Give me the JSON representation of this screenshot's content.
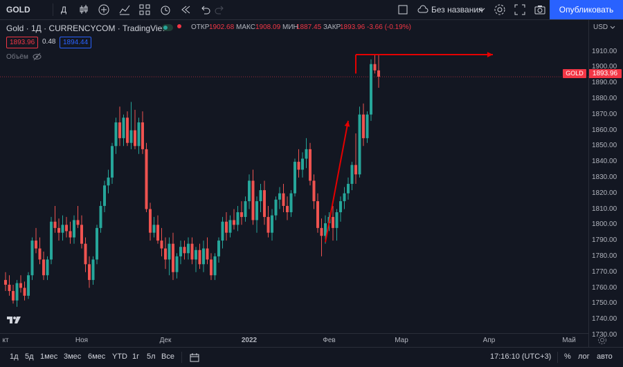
{
  "topbar": {
    "symbol": "GOLD",
    "interval": "Д",
    "layout_name": "Без названия",
    "publish_label": "Опубликовать"
  },
  "legend": {
    "title": "Gold · 1Д · CURRENCYCOM · TradingView",
    "open_label": "ОТКР",
    "open_value": "1902.68",
    "high_label": "МАКС",
    "high_value": "1908.09",
    "low_label": "МИН",
    "low_value": "1887.45",
    "close_label": "ЗАКР",
    "close_value": "1893.96",
    "change": "-3.66 (-0.19%)",
    "bid": "1893.96",
    "spread": "0.48",
    "ask": "1894.44",
    "volume_label": "Объём"
  },
  "yaxis": {
    "currency": "USD",
    "ticks": [
      "1910.00",
      "1900.00",
      "1890.00",
      "1880.00",
      "1870.00",
      "1860.00",
      "1850.00",
      "1840.00",
      "1830.00",
      "1820.00",
      "1810.00",
      "1800.00",
      "1790.00",
      "1780.00",
      "1770.00",
      "1760.00",
      "1750.00",
      "1740.00",
      "1730.00"
    ],
    "price_tag": "1893.96",
    "tag_symbol": "GOLD"
  },
  "xaxis": {
    "ticks": [
      "кт",
      "Ноя",
      "Дек",
      "2022",
      "Фев",
      "Мар",
      "Апр",
      "Май"
    ]
  },
  "bottombar": {
    "ranges": [
      "1д",
      "5д",
      "1мес",
      "3мес",
      "6мес",
      "YTD",
      "1г",
      "5л",
      "Все"
    ],
    "time": "17:16:10 (UTC+3)",
    "percent": "%",
    "log": "лог",
    "auto": "авто"
  },
  "colors": {
    "up": "#26a69a",
    "down": "#ef5350",
    "arrow": "#e50000",
    "accent": "#2962ff"
  },
  "chart_data": {
    "type": "candlestick",
    "ylim": [
      1730,
      1915
    ],
    "current_price": 1893.96,
    "candles": [
      [
        1765,
        1770,
        1758,
        1762
      ],
      [
        1762,
        1768,
        1755,
        1758
      ],
      [
        1758,
        1762,
        1750,
        1752
      ],
      [
        1752,
        1765,
        1748,
        1763
      ],
      [
        1763,
        1768,
        1757,
        1760
      ],
      [
        1760,
        1764,
        1752,
        1755
      ],
      [
        1755,
        1770,
        1753,
        1768
      ],
      [
        1768,
        1792,
        1765,
        1790
      ],
      [
        1790,
        1798,
        1782,
        1785
      ],
      [
        1785,
        1792,
        1775,
        1778
      ],
      [
        1778,
        1783,
        1765,
        1768
      ],
      [
        1768,
        1780,
        1765,
        1778
      ],
      [
        1778,
        1805,
        1775,
        1802
      ],
      [
        1802,
        1812,
        1795,
        1798
      ],
      [
        1798,
        1804,
        1790,
        1795
      ],
      [
        1795,
        1806,
        1790,
        1800
      ],
      [
        1800,
        1805,
        1792,
        1796
      ],
      [
        1796,
        1802,
        1788,
        1792
      ],
      [
        1792,
        1806,
        1788,
        1803
      ],
      [
        1803,
        1812,
        1798,
        1800
      ],
      [
        1800,
        1806,
        1785,
        1788
      ],
      [
        1788,
        1792,
        1770,
        1775
      ],
      [
        1775,
        1780,
        1760,
        1765
      ],
      [
        1765,
        1780,
        1762,
        1778
      ],
      [
        1778,
        1800,
        1775,
        1798
      ],
      [
        1798,
        1815,
        1795,
        1812
      ],
      [
        1812,
        1828,
        1808,
        1825
      ],
      [
        1825,
        1835,
        1820,
        1830
      ],
      [
        1830,
        1852,
        1826,
        1850
      ],
      [
        1850,
        1868,
        1845,
        1865
      ],
      [
        1865,
        1875,
        1850,
        1855
      ],
      [
        1855,
        1870,
        1850,
        1868
      ],
      [
        1868,
        1872,
        1850,
        1852
      ],
      [
        1852,
        1878,
        1848,
        1860
      ],
      [
        1860,
        1873,
        1848,
        1850
      ],
      [
        1850,
        1868,
        1845,
        1865
      ],
      [
        1865,
        1872,
        1845,
        1848
      ],
      [
        1848,
        1852,
        1808,
        1810
      ],
      [
        1810,
        1814,
        1790,
        1795
      ],
      [
        1795,
        1805,
        1792,
        1800
      ],
      [
        1800,
        1806,
        1788,
        1790
      ],
      [
        1790,
        1798,
        1780,
        1785
      ],
      [
        1785,
        1792,
        1772,
        1778
      ],
      [
        1778,
        1792,
        1768,
        1788
      ],
      [
        1788,
        1795,
        1765,
        1770
      ],
      [
        1770,
        1782,
        1766,
        1780
      ],
      [
        1780,
        1790,
        1775,
        1786
      ],
      [
        1786,
        1790,
        1778,
        1782
      ],
      [
        1782,
        1792,
        1778,
        1788
      ],
      [
        1788,
        1792,
        1775,
        1778
      ],
      [
        1778,
        1786,
        1770,
        1784
      ],
      [
        1784,
        1788,
        1772,
        1775
      ],
      [
        1775,
        1790,
        1770,
        1785
      ],
      [
        1785,
        1792,
        1775,
        1778
      ],
      [
        1778,
        1782,
        1765,
        1768
      ],
      [
        1768,
        1782,
        1765,
        1780
      ],
      [
        1780,
        1792,
        1776,
        1790
      ],
      [
        1790,
        1805,
        1785,
        1802
      ],
      [
        1802,
        1808,
        1790,
        1795
      ],
      [
        1795,
        1806,
        1792,
        1803
      ],
      [
        1803,
        1810,
        1797,
        1800
      ],
      [
        1800,
        1812,
        1796,
        1808
      ],
      [
        1808,
        1815,
        1800,
        1805
      ],
      [
        1805,
        1818,
        1802,
        1815
      ],
      [
        1815,
        1832,
        1810,
        1828
      ],
      [
        1828,
        1835,
        1800,
        1803
      ],
      [
        1803,
        1818,
        1795,
        1815
      ],
      [
        1815,
        1826,
        1808,
        1822
      ],
      [
        1822,
        1828,
        1800,
        1805
      ],
      [
        1805,
        1812,
        1792,
        1795
      ],
      [
        1795,
        1810,
        1790,
        1806
      ],
      [
        1806,
        1818,
        1803,
        1816
      ],
      [
        1816,
        1824,
        1810,
        1820
      ],
      [
        1820,
        1826,
        1808,
        1812
      ],
      [
        1812,
        1818,
        1803,
        1808
      ],
      [
        1808,
        1822,
        1805,
        1820
      ],
      [
        1820,
        1842,
        1818,
        1840
      ],
      [
        1840,
        1848,
        1830,
        1835
      ],
      [
        1835,
        1846,
        1830,
        1842
      ],
      [
        1842,
        1855,
        1836,
        1848
      ],
      [
        1848,
        1852,
        1825,
        1828
      ],
      [
        1828,
        1832,
        1810,
        1815
      ],
      [
        1815,
        1820,
        1795,
        1798
      ],
      [
        1798,
        1804,
        1780,
        1793
      ],
      [
        1793,
        1806,
        1788,
        1801
      ],
      [
        1801,
        1808,
        1796,
        1805
      ],
      [
        1805,
        1812,
        1790,
        1798
      ],
      [
        1798,
        1810,
        1790,
        1808
      ],
      [
        1808,
        1818,
        1802,
        1815
      ],
      [
        1815,
        1824,
        1810,
        1820
      ],
      [
        1820,
        1830,
        1816,
        1826
      ],
      [
        1826,
        1840,
        1822,
        1838
      ],
      [
        1838,
        1858,
        1826,
        1832
      ],
      [
        1832,
        1875,
        1830,
        1870
      ],
      [
        1870,
        1877,
        1850,
        1855
      ],
      [
        1855,
        1872,
        1852,
        1870
      ],
      [
        1870,
        1905,
        1866,
        1902
      ],
      [
        1902,
        1908,
        1896,
        1898
      ],
      [
        1898,
        1908,
        1887,
        1894
      ]
    ],
    "annotations": [
      {
        "type": "arrow",
        "from": [
          84,
          1789
        ],
        "to": [
          90,
          1866
        ]
      },
      {
        "type": "arrow",
        "from": [
          92,
          1908
        ],
        "to": [
          128,
          1908
        ]
      }
    ]
  }
}
